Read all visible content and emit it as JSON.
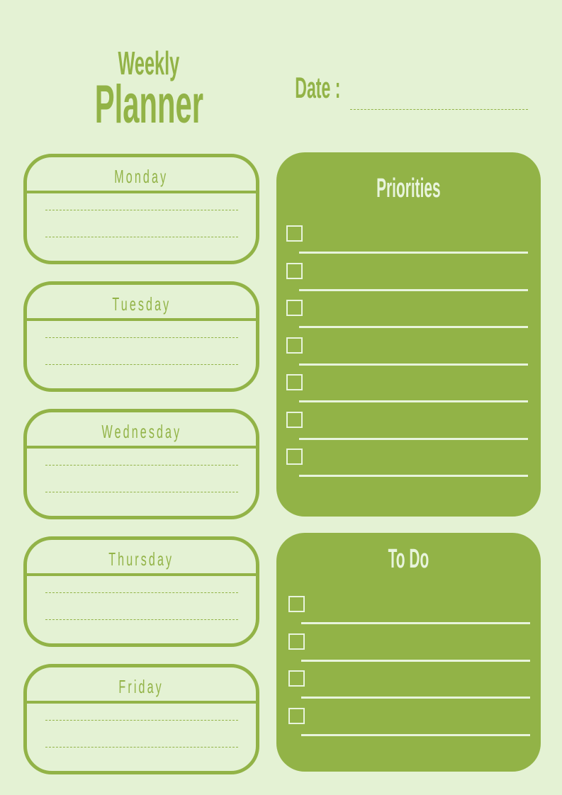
{
  "header": {
    "title_line1": "Weekly",
    "title_line2": "Planner",
    "date_label": "Date :"
  },
  "days": [
    {
      "label": "Monday"
    },
    {
      "label": "Tuesday"
    },
    {
      "label": "Wednesday"
    },
    {
      "label": "Thursday"
    },
    {
      "label": "Friday"
    }
  ],
  "priorities": {
    "title": "Priorities",
    "item_count": 7
  },
  "todo": {
    "title": "To Do",
    "item_count": 4
  },
  "colors": {
    "background": "#e4f2d4",
    "accent": "#92b347",
    "panel_text": "#e8f4dc"
  }
}
